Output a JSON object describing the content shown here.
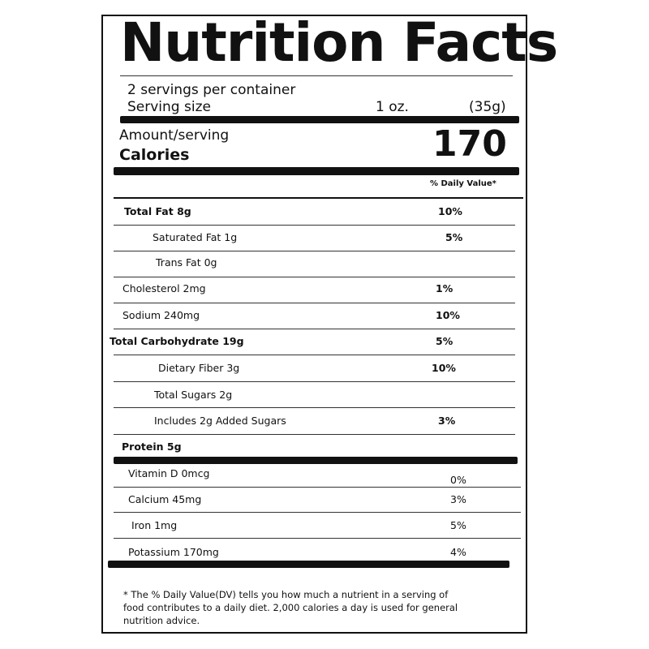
{
  "title": "Nutrition Facts",
  "servings_per_container": "2  servings per container",
  "serving_size": {
    "label": "Serving size",
    "amount": "1 oz.",
    "grams": "(35g)"
  },
  "amount_per_serving": "Amount/serving",
  "calories": {
    "label": "Calories",
    "value": "170"
  },
  "daily_value_header": "% Daily Value*",
  "nutrients": [
    {
      "label": "Total Fat   8g",
      "dv": "10%"
    },
    {
      "label": "Saturated Fat 1g",
      "dv": "5%"
    },
    {
      "label": "Trans Fat   0g",
      "dv": ""
    },
    {
      "label": "Cholesterol  2mg",
      "dv": "1%"
    },
    {
      "label": "Sodium 240mg",
      "dv": "10%"
    },
    {
      "label": "Total Carbohydrate   19g",
      "dv": "5%"
    },
    {
      "label": "Dietary Fiber   3g",
      "dv": "10%"
    },
    {
      "label": "Total Sugars  2g",
      "dv": ""
    },
    {
      "label": "Includes 2g Added Sugars",
      "dv": "3%"
    },
    {
      "label": "Protein  5g",
      "dv": ""
    }
  ],
  "vitamins": [
    {
      "label": "Vitamin D   0mcg",
      "dv": "0%"
    },
    {
      "label": "Calcium   45mg",
      "dv": "3%"
    },
    {
      "label": "Iron  1mg",
      "dv": "5%"
    },
    {
      "label": "Potassium   170mg",
      "dv": "4%"
    }
  ],
  "footnote": "* The % Daily Value(DV) tells you how much a nutrient in a serving of food contributes to a daily diet. 2,000 calories a day is used for general nutrition advice."
}
